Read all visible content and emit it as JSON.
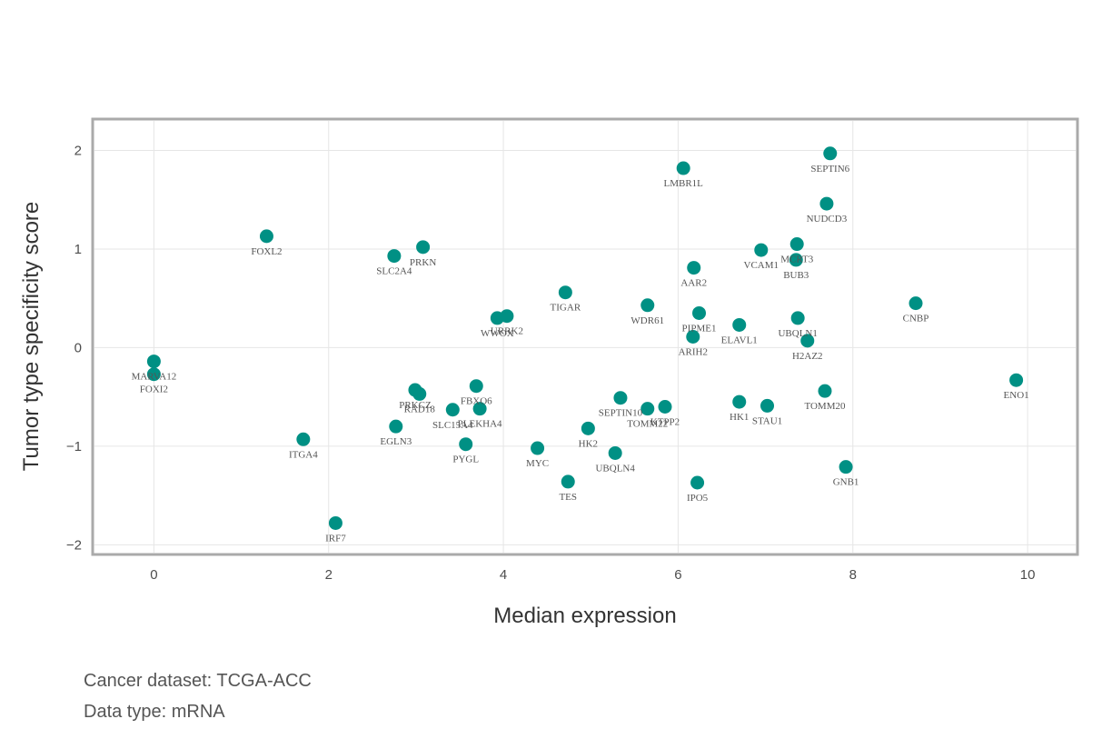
{
  "chart_data": {
    "type": "scatter",
    "xlabel": "Median expression",
    "ylabel": "Tumor type specificity score",
    "xlim": [
      -0.68,
      10.55
    ],
    "ylim": [
      -2.08,
      2.3
    ],
    "xticks": [
      0,
      2,
      4,
      6,
      8,
      10
    ],
    "yticks": [
      -2,
      -1,
      0,
      1,
      2
    ],
    "xtick_labels": [
      "0",
      "2",
      "4",
      "6",
      "8",
      "10"
    ],
    "ytick_labels": [
      "−2",
      "−1",
      "0",
      "1",
      "2"
    ],
    "grid": true,
    "point_color": "#009084",
    "points": [
      {
        "label": "SEPTIN6",
        "x": 7.74,
        "y": 1.97
      },
      {
        "label": "LMBR1L",
        "x": 6.06,
        "y": 1.82
      },
      {
        "label": "NUDCD3",
        "x": 7.7,
        "y": 1.46
      },
      {
        "label": "FOXL2",
        "x": 1.29,
        "y": 1.13
      },
      {
        "label": "MCRT3",
        "x": 7.36,
        "y": 1.05
      },
      {
        "label": "PRKN",
        "x": 3.08,
        "y": 1.02
      },
      {
        "label": "VCAM1",
        "x": 6.95,
        "y": 0.99
      },
      {
        "label": "SLC2A4",
        "x": 2.75,
        "y": 0.93
      },
      {
        "label": "BUB3",
        "x": 7.35,
        "y": 0.89
      },
      {
        "label": "AAR2",
        "x": 6.18,
        "y": 0.81
      },
      {
        "label": "TIGAR",
        "x": 4.71,
        "y": 0.56
      },
      {
        "label": "CNBP",
        "x": 8.72,
        "y": 0.45
      },
      {
        "label": "WDR61",
        "x": 5.65,
        "y": 0.43
      },
      {
        "label": "PIPME1",
        "x": 6.24,
        "y": 0.35
      },
      {
        "label": "URRK2",
        "x": 4.04,
        "y": 0.32
      },
      {
        "label": "WWOX",
        "x": 3.93,
        "y": 0.3
      },
      {
        "label": "UBQLN1",
        "x": 7.37,
        "y": 0.3
      },
      {
        "label": "ELAVL1",
        "x": 6.7,
        "y": 0.23
      },
      {
        "label": "ARIH2",
        "x": 6.17,
        "y": 0.11
      },
      {
        "label": "H2AZ2",
        "x": 7.48,
        "y": 0.07
      },
      {
        "label": "MARVA12",
        "x": 0.0,
        "y": -0.14
      },
      {
        "label": "FOXI2",
        "x": 0.0,
        "y": -0.27
      },
      {
        "label": "ENO1",
        "x": 9.87,
        "y": -0.33
      },
      {
        "label": "FBXO6",
        "x": 3.69,
        "y": -0.39
      },
      {
        "label": "PRKCZ",
        "x": 2.99,
        "y": -0.43
      },
      {
        "label": "TOMM20",
        "x": 7.68,
        "y": -0.44
      },
      {
        "label": "RAD18",
        "x": 3.04,
        "y": -0.47
      },
      {
        "label": "SEPTIN10",
        "x": 5.34,
        "y": -0.51
      },
      {
        "label": "HK1",
        "x": 6.7,
        "y": -0.55
      },
      {
        "label": "STAU1",
        "x": 7.02,
        "y": -0.59
      },
      {
        "label": "KTPP2",
        "x": 5.85,
        "y": -0.6
      },
      {
        "label": "TOMM22",
        "x": 5.65,
        "y": -0.62
      },
      {
        "label": "PLEKHA4",
        "x": 3.73,
        "y": -0.62
      },
      {
        "label": "SLC15A4",
        "x": 3.42,
        "y": -0.63
      },
      {
        "label": "EGLN3",
        "x": 2.77,
        "y": -0.8
      },
      {
        "label": "HK2",
        "x": 4.97,
        "y": -0.82
      },
      {
        "label": "ITGA4",
        "x": 1.71,
        "y": -0.93
      },
      {
        "label": "PYGL",
        "x": 3.57,
        "y": -0.98
      },
      {
        "label": "MYC",
        "x": 4.39,
        "y": -1.02
      },
      {
        "label": "UBQLN4",
        "x": 5.28,
        "y": -1.07
      },
      {
        "label": "GNB1",
        "x": 7.92,
        "y": -1.21
      },
      {
        "label": "TES",
        "x": 4.74,
        "y": -1.36
      },
      {
        "label": "IPO5",
        "x": 6.22,
        "y": -1.37
      },
      {
        "label": "IRF7",
        "x": 2.08,
        "y": -1.78
      }
    ]
  },
  "captions": {
    "dataset": "Cancer dataset: TCGA-ACC",
    "datatype": "Data type: mRNA"
  }
}
